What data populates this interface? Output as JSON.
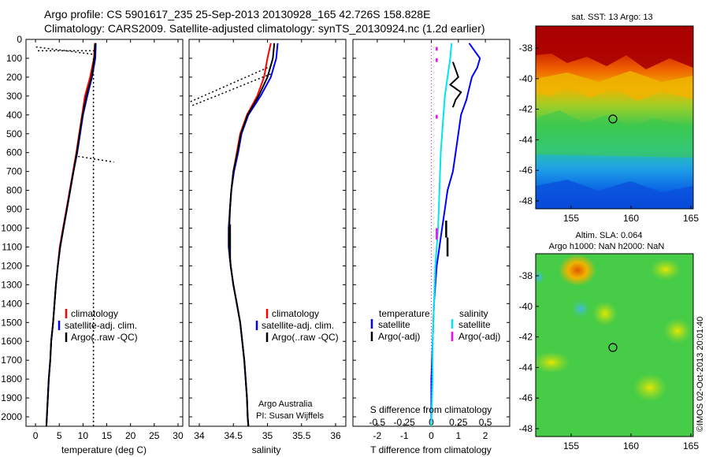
{
  "header": {
    "line1": "Argo profile: CS 5901617_235 25-Sep-2013 20130928_165 42.726S 158.828E",
    "line2": "Climatology: CARS2009. Satellite-adjusted climatology: synTS_20130924.nc (1.2d earlier)"
  },
  "depth_axis": {
    "ticks": [
      0,
      100,
      200,
      300,
      400,
      500,
      600,
      700,
      800,
      900,
      1000,
      1100,
      1200,
      1300,
      1400,
      1500,
      1600,
      1700,
      1800,
      1900,
      2000
    ]
  },
  "panels": {
    "temperature": {
      "xlabel": "temperature (deg C)",
      "xticks": [
        0,
        5,
        10,
        15,
        20,
        25,
        30
      ],
      "legend": [
        "climatology",
        "satellite-adj. clim.",
        "Argo(..raw -QC)"
      ]
    },
    "salinity": {
      "xlabel": "salinity",
      "xticks": [
        "34",
        "34.5",
        "35",
        "35.5",
        "36"
      ],
      "legend": [
        "climatology",
        "satellite-adj. clim.",
        "Argo(..raw -QC)"
      ],
      "note1": "Argo Australia",
      "note2": "PI: Susan Wijffels"
    },
    "difference": {
      "xlabel": "T difference from climatology",
      "xlabel_top": "S difference from climatology",
      "xticks_bottom": [
        "-2",
        "-1",
        "0",
        "1",
        "2"
      ],
      "xticks_top": [
        "-0.5",
        "-0.25",
        "0",
        "0.25",
        "0.5"
      ],
      "legend_t_title": "temperature",
      "legend_t": [
        "satellite",
        "Argo(-adj)"
      ],
      "legend_s_title": "salinity",
      "legend_s": [
        "satellite",
        "Argo(-adj)"
      ]
    }
  },
  "maps": {
    "sst": {
      "title": "sat. SST: 13 Argo: 13",
      "yticks": [
        "-38",
        "-40",
        "-42",
        "-44",
        "-46",
        "-48"
      ],
      "xticks": [
        "155",
        "160",
        "165"
      ]
    },
    "sla": {
      "title1": "Altim. SLA: 0.064",
      "title2": "Argo h1000: NaN h2000: NaN",
      "yticks": [
        "-38",
        "-40",
        "-42",
        "-44",
        "-46",
        "-48"
      ],
      "xticks": [
        "155",
        "160",
        "165"
      ]
    }
  },
  "footer": {
    "stamp": "©IMOS 02-Oct-2013 20:01:40"
  },
  "colors": {
    "climatology": "#ff0000",
    "satellite": "#0000ff",
    "argo": "#000000",
    "sal_satellite": "#00e5ee",
    "sal_argo": "#ff00ff"
  },
  "chart_data": [
    {
      "type": "line",
      "title": "",
      "xlabel": "temperature (deg C)",
      "ylabel": "",
      "xlim": [
        -2,
        31
      ],
      "ylim": [
        2050,
        0
      ],
      "series": [
        {
          "name": "climatology",
          "depth": [
            20,
            100,
            200,
            300,
            400,
            500,
            600,
            700,
            800,
            900,
            1000,
            1100,
            1200,
            1300,
            1400,
            1500,
            1600,
            1700,
            1800,
            1900,
            2000,
            2050
          ],
          "values": [
            12.5,
            12.3,
            11.5,
            10.4,
            9.8,
            9.2,
            8.6,
            7.9,
            7.2,
            6.5,
            5.8,
            5.1,
            4.7,
            4.3,
            4.0,
            3.7,
            3.3,
            3.1,
            2.8,
            2.6,
            2.4,
            2.3
          ]
        },
        {
          "name": "satellite-adj. clim.",
          "depth": [
            20,
            100,
            200,
            300,
            400,
            500,
            600,
            700,
            800,
            900,
            1000,
            1100,
            1200,
            1300,
            1400,
            1500,
            1600,
            1700,
            1800,
            1900,
            2000,
            2050
          ],
          "values": [
            12.7,
            12.6,
            11.9,
            10.9,
            10.0,
            9.4,
            8.8,
            8.0,
            7.3,
            6.6,
            5.9,
            5.2,
            4.7,
            4.3,
            4.0,
            3.7,
            3.3,
            3.1,
            2.8,
            2.6,
            2.4,
            2.3
          ]
        },
        {
          "name": "Argo(..raw -QC)",
          "depth": [
            20,
            100,
            200,
            300,
            400,
            500,
            600,
            700,
            800,
            900,
            1000,
            1100,
            1200,
            1300,
            1400,
            1500,
            1600,
            1700,
            1800,
            1900,
            2000,
            2050
          ],
          "values": [
            12.6,
            12.4,
            11.8,
            10.7,
            9.9,
            9.3,
            8.7,
            8.0,
            7.3,
            6.6,
            5.9,
            5.2,
            4.7,
            4.3,
            4.0,
            3.7,
            3.3,
            3.1,
            2.8,
            2.6,
            2.4,
            2.3
          ]
        }
      ]
    },
    {
      "type": "line",
      "title": "",
      "xlabel": "salinity",
      "ylabel": "",
      "xlim": [
        33.85,
        36.15
      ],
      "ylim": [
        2050,
        0
      ],
      "series": [
        {
          "name": "climatology",
          "depth": [
            20,
            100,
            200,
            300,
            400,
            500,
            600,
            700,
            800,
            900,
            1000,
            1100,
            1200,
            1300,
            1400,
            1500,
            1600,
            1700,
            1800,
            1900,
            2000,
            2050
          ],
          "values": [
            35.05,
            35.0,
            34.95,
            34.85,
            34.7,
            34.6,
            34.55,
            34.5,
            34.47,
            34.45,
            34.44,
            34.44,
            34.46,
            34.5,
            34.55,
            34.6,
            34.63,
            34.66,
            34.68,
            34.7,
            34.71,
            34.72
          ]
        },
        {
          "name": "satellite-adj. clim.",
          "depth": [
            20,
            100,
            200,
            300,
            400,
            500,
            600,
            700,
            800,
            900,
            1000,
            1100,
            1200,
            1300,
            1400,
            1500,
            1600,
            1700,
            1800,
            1900,
            2000,
            2050
          ],
          "values": [
            35.15,
            35.13,
            35.05,
            34.9,
            34.72,
            34.62,
            34.57,
            34.51,
            34.47,
            34.45,
            34.43,
            34.43,
            34.46,
            34.5,
            34.55,
            34.6,
            34.63,
            34.66,
            34.68,
            34.7,
            34.71,
            34.72
          ]
        },
        {
          "name": "Argo(..raw -QC)",
          "depth": [
            20,
            100,
            200,
            300,
            400,
            500,
            600,
            700,
            800,
            900,
            1000,
            1100,
            1200,
            1300,
            1400,
            1500,
            1600,
            1700,
            1800,
            1900,
            2000,
            2050
          ],
          "values": [
            35.1,
            35.08,
            35.0,
            34.87,
            34.71,
            34.61,
            34.56,
            34.5,
            34.47,
            34.45,
            34.44,
            34.44,
            34.46,
            34.5,
            34.55,
            34.6,
            34.63,
            34.66,
            34.68,
            34.7,
            34.71,
            34.72
          ]
        }
      ]
    },
    {
      "type": "line",
      "title": "",
      "xlabel": "T difference from climatology",
      "ylabel": "",
      "xlim": [
        -2.9,
        2.9
      ],
      "ylim": [
        2050,
        0
      ],
      "series": [
        {
          "name": "satellite",
          "depth": [
            20,
            60,
            100,
            150,
            200,
            260,
            320,
            400,
            500,
            600,
            700,
            800,
            900,
            1000,
            1100,
            1200,
            1300,
            1400,
            1600,
            1800,
            2050
          ],
          "values": [
            1.4,
            1.6,
            1.8,
            1.7,
            1.5,
            1.4,
            1.3,
            1.1,
            1.0,
            0.9,
            0.8,
            0.6,
            0.5,
            0.4,
            0.3,
            0.2,
            0.15,
            0.1,
            0.05,
            0.0,
            0.0
          ]
        },
        {
          "name": "Argo(-adj)",
          "depth": [
            120,
            160,
            200,
            240,
            280,
            320,
            360
          ],
          "values": [
            0.8,
            0.9,
            1.0,
            0.7,
            1.1,
            0.9,
            0.8
          ]
        }
      ]
    }
  ]
}
